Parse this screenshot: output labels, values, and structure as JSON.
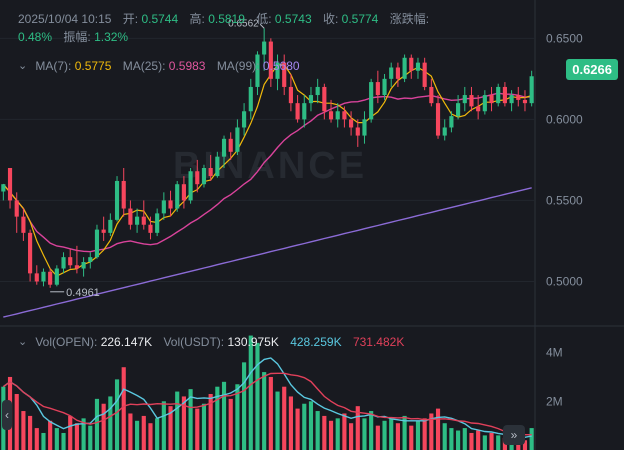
{
  "header": {
    "date": "2025/10/04 10:15",
    "open_label": "开:",
    "open": "0.5744",
    "high_label": "高:",
    "high": "0.5819",
    "low_label": "低:",
    "low": "0.5743",
    "close_label": "收:",
    "close": "0.5774",
    "change_label": "涨跌幅:",
    "change": "0.48%",
    "amp_label": "振幅:",
    "amp": "1.32%"
  },
  "ma_row": {
    "ma7_label": "MA(7):",
    "ma7": "0.5775",
    "ma25_label": "MA(25):",
    "ma25": "0.5983",
    "ma99_label": "MA(99):",
    "ma99": "0.5680"
  },
  "vol_row": {
    "open_label": "Vol(OPEN):",
    "open": "226.147K",
    "usdt_label": "Vol(USDT):",
    "usdt": "130.975K",
    "ma1": "428.259K",
    "ma2": "731.482K"
  },
  "price_tag": "0.6266",
  "watermark": "BINANCE",
  "colors": {
    "up": "#2ebd85",
    "down": "#f6465d",
    "ma7": "#f0b90b",
    "ma25": "#d9439b",
    "ma99": "#8b6bd6",
    "vol_ma1": "#5ac8e0",
    "vol_ma2": "#e0405a"
  },
  "chart_data": {
    "type": "candlestick",
    "y_ticks": [
      "0.6500",
      "0.6000",
      "0.5500",
      "0.5000"
    ],
    "ylim": [
      0.475,
      0.665
    ],
    "vol_ticks": [
      "4M",
      "2M"
    ],
    "vol_ylim": [
      0,
      4.6
    ],
    "annotations": [
      {
        "text": "0.6562",
        "index": 39,
        "price": 0.6562
      },
      {
        "text": "0.4961",
        "index": 7,
        "price": 0.4961
      }
    ],
    "candles": [
      [
        0.5555,
        0.56,
        0.55,
        0.56
      ],
      [
        0.57,
        0.57,
        0.545,
        0.55
      ],
      [
        0.55,
        0.555,
        0.53,
        0.54
      ],
      [
        0.54,
        0.545,
        0.525,
        0.53
      ],
      [
        0.53,
        0.532,
        0.5,
        0.505
      ],
      [
        0.505,
        0.51,
        0.498,
        0.5
      ],
      [
        0.5,
        0.508,
        0.497,
        0.506
      ],
      [
        0.506,
        0.508,
        0.4961,
        0.498
      ],
      [
        0.498,
        0.51,
        0.497,
        0.508
      ],
      [
        0.508,
        0.518,
        0.505,
        0.515
      ],
      [
        0.515,
        0.52,
        0.508,
        0.51
      ],
      [
        0.51,
        0.522,
        0.505,
        0.508
      ],
      [
        0.508,
        0.515,
        0.503,
        0.512
      ],
      [
        0.512,
        0.518,
        0.508,
        0.515
      ],
      [
        0.515,
        0.535,
        0.514,
        0.532
      ],
      [
        0.532,
        0.54,
        0.525,
        0.53
      ],
      [
        0.53,
        0.542,
        0.528,
        0.538
      ],
      [
        0.538,
        0.565,
        0.537,
        0.562
      ],
      [
        0.562,
        0.57,
        0.54,
        0.545
      ],
      [
        0.545,
        0.55,
        0.532,
        0.535
      ],
      [
        0.535,
        0.545,
        0.53,
        0.54
      ],
      [
        0.54,
        0.55,
        0.532,
        0.535
      ],
      [
        0.535,
        0.54,
        0.526,
        0.53
      ],
      [
        0.53,
        0.545,
        0.528,
        0.542
      ],
      [
        0.542,
        0.555,
        0.538,
        0.55
      ],
      [
        0.55,
        0.556,
        0.54,
        0.545
      ],
      [
        0.545,
        0.562,
        0.543,
        0.56
      ],
      [
        0.56,
        0.565,
        0.545,
        0.55
      ],
      [
        0.55,
        0.57,
        0.548,
        0.568
      ],
      [
        0.568,
        0.575,
        0.555,
        0.56
      ],
      [
        0.56,
        0.572,
        0.558,
        0.57
      ],
      [
        0.57,
        0.578,
        0.562,
        0.565
      ],
      [
        0.565,
        0.58,
        0.564,
        0.577
      ],
      [
        0.577,
        0.59,
        0.57,
        0.588
      ],
      [
        0.588,
        0.592,
        0.575,
        0.58
      ],
      [
        0.58,
        0.6,
        0.578,
        0.595
      ],
      [
        0.595,
        0.61,
        0.59,
        0.605
      ],
      [
        0.605,
        0.625,
        0.6,
        0.62
      ],
      [
        0.62,
        0.642,
        0.615,
        0.64
      ],
      [
        0.64,
        0.6562,
        0.63,
        0.648
      ],
      [
        0.648,
        0.65,
        0.62,
        0.625
      ],
      [
        0.625,
        0.64,
        0.618,
        0.635
      ],
      [
        0.635,
        0.64,
        0.615,
        0.62
      ],
      [
        0.62,
        0.628,
        0.605,
        0.61
      ],
      [
        0.61,
        0.615,
        0.598,
        0.6
      ],
      [
        0.6,
        0.615,
        0.595,
        0.61
      ],
      [
        0.61,
        0.62,
        0.605,
        0.615
      ],
      [
        0.615,
        0.625,
        0.61,
        0.62
      ],
      [
        0.62,
        0.622,
        0.6,
        0.605
      ],
      [
        0.605,
        0.612,
        0.598,
        0.6
      ],
      [
        0.6,
        0.61,
        0.595,
        0.605
      ],
      [
        0.605,
        0.608,
        0.595,
        0.6
      ],
      [
        0.6,
        0.605,
        0.59,
        0.595
      ],
      [
        0.595,
        0.6,
        0.583,
        0.59
      ],
      [
        0.59,
        0.605,
        0.585,
        0.6
      ],
      [
        0.6,
        0.625,
        0.598,
        0.623
      ],
      [
        0.623,
        0.63,
        0.61,
        0.615
      ],
      [
        0.615,
        0.628,
        0.612,
        0.625
      ],
      [
        0.625,
        0.635,
        0.62,
        0.632
      ],
      [
        0.632,
        0.635,
        0.62,
        0.625
      ],
      [
        0.625,
        0.64,
        0.623,
        0.638
      ],
      [
        0.638,
        0.64,
        0.625,
        0.63
      ],
      [
        0.63,
        0.638,
        0.625,
        0.635
      ],
      [
        0.635,
        0.638,
        0.618,
        0.62
      ],
      [
        0.62,
        0.625,
        0.608,
        0.61
      ],
      [
        0.61,
        0.615,
        0.588,
        0.59
      ],
      [
        0.59,
        0.6,
        0.587,
        0.595
      ],
      [
        0.595,
        0.605,
        0.592,
        0.602
      ],
      [
        0.602,
        0.615,
        0.6,
        0.61
      ],
      [
        0.61,
        0.62,
        0.605,
        0.615
      ],
      [
        0.615,
        0.62,
        0.605,
        0.608
      ],
      [
        0.608,
        0.615,
        0.6,
        0.605
      ],
      [
        0.605,
        0.618,
        0.603,
        0.615
      ],
      [
        0.615,
        0.62,
        0.605,
        0.61
      ],
      [
        0.61,
        0.622,
        0.608,
        0.62
      ],
      [
        0.62,
        0.623,
        0.608,
        0.61
      ],
      [
        0.61,
        0.618,
        0.605,
        0.615
      ],
      [
        0.615,
        0.62,
        0.608,
        0.612
      ],
      [
        0.612,
        0.618,
        0.605,
        0.61
      ],
      [
        0.61,
        0.63,
        0.608,
        0.6266
      ]
    ],
    "volumes": [
      2.6,
      3.0,
      2.3,
      1.6,
      1.4,
      0.9,
      0.7,
      1.2,
      0.9,
      0.7,
      1.4,
      1.1,
      1.3,
      1.0,
      2.1,
      1.9,
      2.2,
      2.9,
      3.4,
      1.5,
      1.2,
      1.4,
      1.1,
      1.3,
      2.0,
      1.8,
      2.4,
      2.2,
      2.5,
      1.7,
      1.9,
      2.3,
      2.6,
      2.8,
      2.1,
      2.7,
      3.6,
      4.7,
      4.4,
      3.2,
      3.0,
      2.4,
      2.6,
      2.2,
      1.7,
      1.9,
      2.0,
      1.6,
      1.4,
      1.2,
      1.3,
      1.5,
      1.1,
      1.8,
      1.3,
      1.6,
      1.0,
      1.2,
      1.3,
      1.1,
      1.4,
      1.0,
      1.2,
      1.3,
      1.5,
      1.7,
      1.1,
      0.9,
      0.8,
      0.9,
      0.7,
      0.8,
      0.6,
      0.7,
      0.6,
      0.5,
      0.6,
      0.5,
      0.4,
      0.9
    ]
  }
}
